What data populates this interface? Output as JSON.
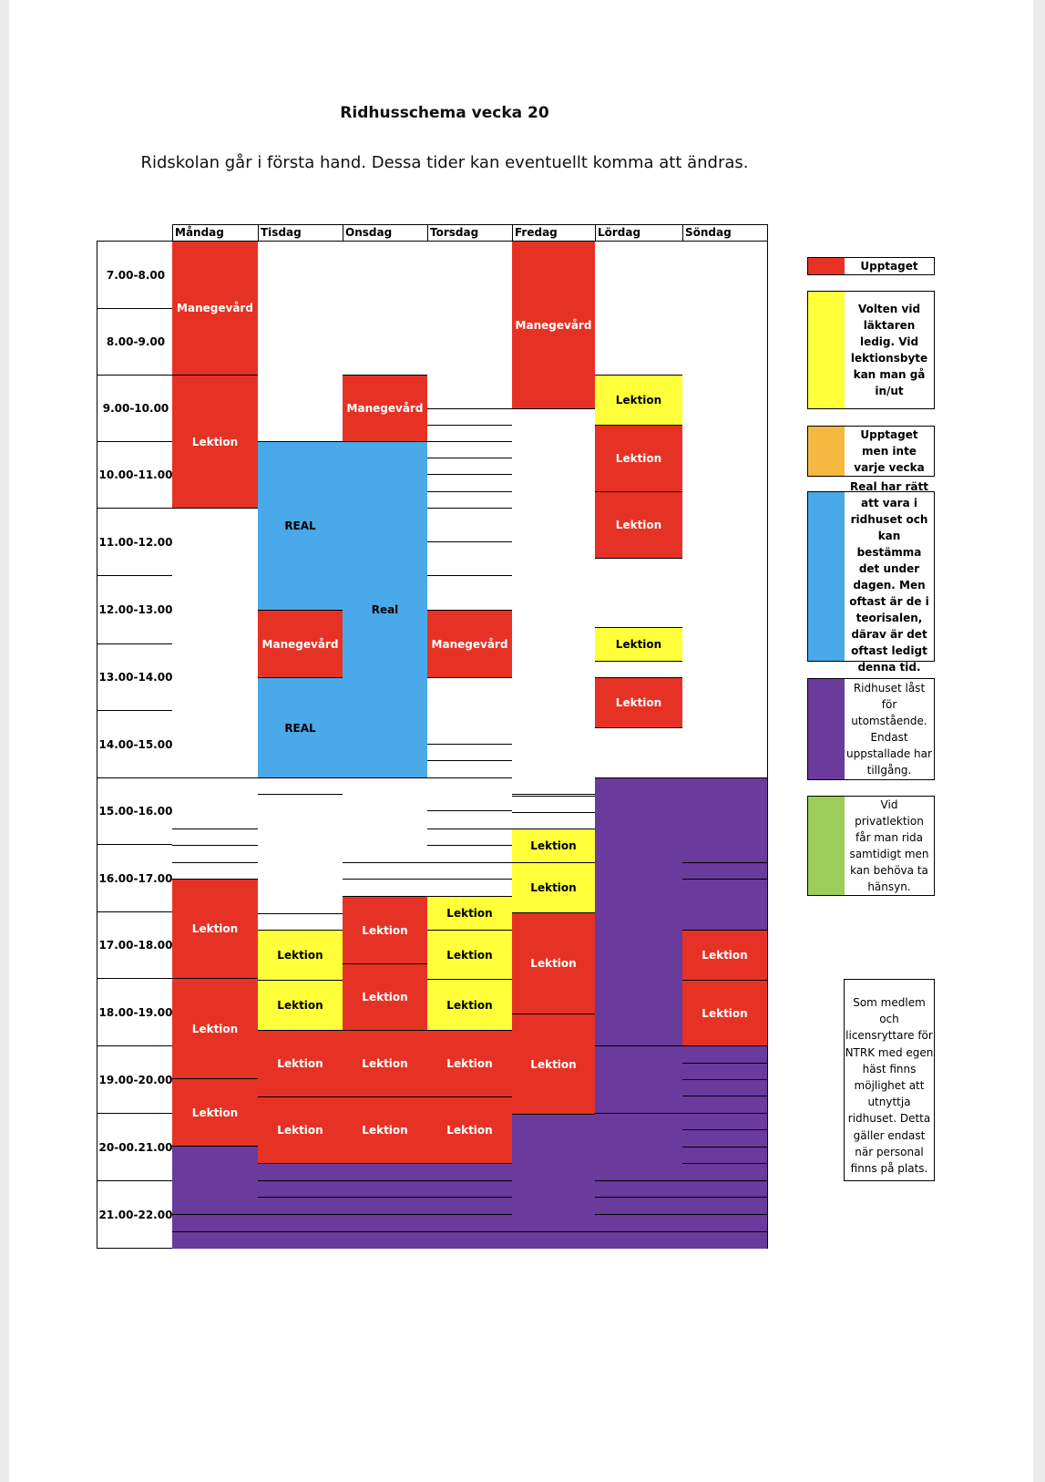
{
  "title": "Ridhusschema vecka 20",
  "subtitle": "Ridskolan går i första hand. Dessa tider kan eventuellt komma att ändras.",
  "days": [
    "Måndag",
    "Tisdag",
    "Onsdag",
    "Torsdag",
    "Fredag",
    "Lördag",
    "Söndag"
  ],
  "times": [
    "7.00-8.00",
    "8.00-9.00",
    "9.00-10.00",
    "10.00-11.00",
    "11.00-12.00",
    "12.00-13.00",
    "13.00-14.00",
    "14.00-15.00",
    "15.00-16.00",
    "16.00-17.00",
    "17.00-18.00",
    "18.00-19.00",
    "19.00-20.00",
    "20-00.21.00",
    "21.00-22.00"
  ],
  "colors": {
    "red": "#e63225",
    "yellow": "#ffff3a",
    "orange": "#f5b942",
    "blue": "#4aa9e8",
    "purple": "#6a3a9c",
    "green": "#9ccd5a"
  },
  "schedule": {
    "mandag": {
      "b1": "Manegevård",
      "b2": "Lektion",
      "b3": "Lektion",
      "b4": "Lektion",
      "b5": "Lektion"
    },
    "tisdag": {
      "b1": "REAL",
      "b2": "Manegevård",
      "b3": "REAL",
      "b4": "Lektion",
      "b5": "Lektion",
      "b6": "Lektion",
      "b7": "Lektion"
    },
    "onsdag": {
      "b1": "Manegevård",
      "b2": "Real",
      "b3": "Lektion",
      "b4": "Lektion",
      "b5": "Lektion",
      "b6": "Lektion"
    },
    "torsdag": {
      "b1": "Manegevård",
      "b2": "Lektion",
      "b3": "Lektion",
      "b4": "Lektion",
      "b5": "Lektion",
      "b6": "Lektion"
    },
    "fredag": {
      "b1": "Manegevård",
      "b2": "Lektion",
      "b3": "Lektion",
      "b4": "Lektion",
      "b5": "Lektion"
    },
    "lordag": {
      "b1": "Lektion",
      "b2": "Lektion",
      "b3": "Lektion",
      "b4": "Lektion",
      "b5": "Lektion"
    },
    "sondag": {
      "b1": "Lektion",
      "b2": "Lektion"
    }
  },
  "legend": [
    {
      "color": "red",
      "text": "Upptaget"
    },
    {
      "color": "yellow",
      "text": "Volten vid läktaren ledig. Vid lektionsbyte kan man gå in/ut"
    },
    {
      "color": "orange",
      "text": "Upptaget men inte varje vecka"
    },
    {
      "color": "blue",
      "text": "Real har rätt att vara i ridhuset och kan bestämma det under dagen. Men oftast är de i teorisalen, därav är det oftast ledigt denna tid."
    },
    {
      "color": "purple",
      "text": "Ridhuset låst för utomstående. Endast uppstallade har tillgång."
    },
    {
      "color": "green",
      "text": "Vid privatlektion får man rida samtidigt men kan behöva ta hänsyn."
    }
  ],
  "note": "Som medlem och licensryttare för NTRK med egen häst finns möjlighet att utnyttja ridhuset. Detta gäller endast när personal finns på plats."
}
